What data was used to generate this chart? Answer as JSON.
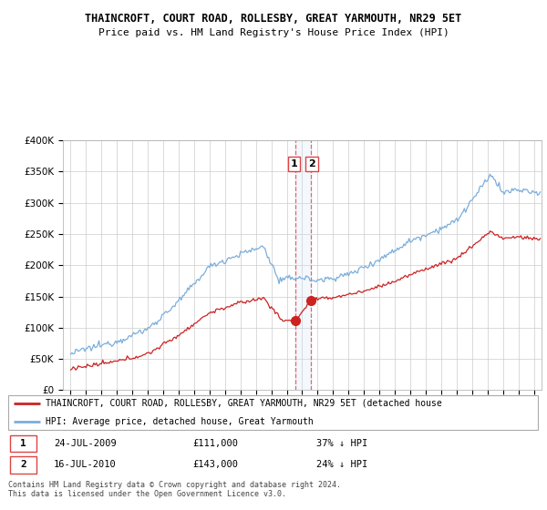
{
  "title": "THAINCROFT, COURT ROAD, ROLLESBY, GREAT YARMOUTH, NR29 5ET",
  "subtitle": "Price paid vs. HM Land Registry's House Price Index (HPI)",
  "legend_line1": "THAINCROFT, COURT ROAD, ROLLESBY, GREAT YARMOUTH, NR29 5ET (detached house",
  "legend_line2": "HPI: Average price, detached house, Great Yarmouth",
  "footer": "Contains HM Land Registry data © Crown copyright and database right 2024.\nThis data is licensed under the Open Government Licence v3.0.",
  "sale1_label": "1",
  "sale1_date": "24-JUL-2009",
  "sale1_price": "£111,000",
  "sale1_hpi": "37% ↓ HPI",
  "sale2_label": "2",
  "sale2_date": "16-JUL-2010",
  "sale2_price": "£143,000",
  "sale2_hpi": "24% ↓ HPI",
  "ylim": [
    0,
    400000
  ],
  "yticks": [
    0,
    50000,
    100000,
    150000,
    200000,
    250000,
    300000,
    350000,
    400000
  ],
  "hpi_color": "#7aaedc",
  "price_color": "#cc2222",
  "vline_color": "#dd4444",
  "span_color": "#d0e4f7",
  "marker1_x": 2009.56,
  "marker1_y": 111000,
  "marker2_x": 2010.54,
  "marker2_y": 143000,
  "vline1_x": 2009.56,
  "vline2_x": 2010.54,
  "xmin": 1994.5,
  "xmax": 2025.5
}
